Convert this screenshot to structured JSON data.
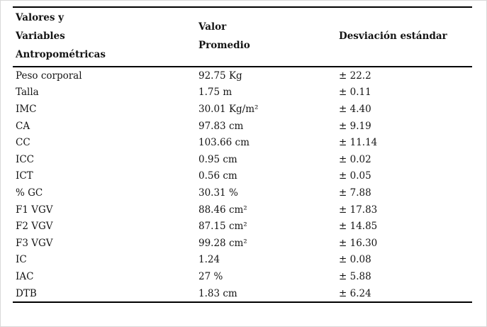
{
  "table": {
    "headers": {
      "variables": "Valores y\nVariables\nAntropométricas",
      "mean": "Valor\nPromedio",
      "sd": "Desviación estándar"
    },
    "rows": [
      {
        "variable": "Peso corporal",
        "value": "92.75 Kg",
        "sd": "± 22.2"
      },
      {
        "variable": "Talla",
        "value": "1.75 m",
        "sd": "± 0.11"
      },
      {
        "variable": "IMC",
        "value": "30.01 Kg/m²",
        "sd": "± 4.40"
      },
      {
        "variable": "CA",
        "value": "97.83 cm",
        "sd": "± 9.19"
      },
      {
        "variable": "CC",
        "value": "103.66 cm",
        "sd": "± 11.14"
      },
      {
        "variable": "ICC",
        "value": "0.95 cm",
        "sd": "± 0.02"
      },
      {
        "variable": "ICT",
        "value": "0.56 cm",
        "sd": "± 0.05"
      },
      {
        "variable": "% GC",
        "value": "30.31 %",
        "sd": "± 7.88"
      },
      {
        "variable": "F1 VGV",
        "value": "88.46 cm²",
        "sd": "± 17.83"
      },
      {
        "variable": "F2 VGV",
        "value": "87.15 cm²",
        "sd": "± 14.85"
      },
      {
        "variable": "F3 VGV",
        "value": "99.28 cm²",
        "sd": "± 16.30"
      },
      {
        "variable": "IC",
        "value": "1.24",
        "sd": "± 0.08"
      },
      {
        "variable": "IAC",
        "value": "27 %",
        "sd": "± 5.88"
      },
      {
        "variable": "DTB",
        "value": "1.83 cm",
        "sd": "± 6.24"
      }
    ]
  }
}
